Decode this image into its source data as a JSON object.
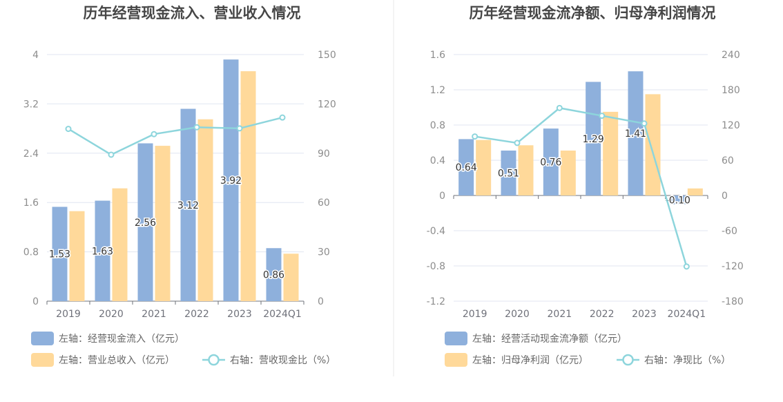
{
  "chart_data": [
    {
      "type": "bar",
      "title": "历年经营现金流入、营业收入情况",
      "categories": [
        "2019",
        "2020",
        "2021",
        "2022",
        "2023",
        "2024Q1"
      ],
      "y_left": {
        "ticks": [
          "0",
          "0.8",
          "1.6",
          "2.4",
          "3.2",
          "4"
        ],
        "ylim": [
          0,
          4
        ]
      },
      "y_right": {
        "ticks": [
          "0",
          "30",
          "60",
          "90",
          "120",
          "150"
        ],
        "ylim": [
          0,
          150
        ]
      },
      "series": [
        {
          "name": "左轴：经营现金流入（亿元）",
          "type": "bar",
          "axis": "left",
          "color": "#8eb0dc",
          "values": [
            1.53,
            1.63,
            2.56,
            3.12,
            3.92,
            0.86
          ],
          "labels": [
            "1.53",
            "1.63",
            "2.56",
            "3.12",
            "3.92",
            "0.86"
          ]
        },
        {
          "name": "左轴：营业总收入（亿元）",
          "type": "bar",
          "axis": "left",
          "color": "#ffd99a",
          "values": [
            1.46,
            1.83,
            2.52,
            2.95,
            3.73,
            0.77
          ]
        },
        {
          "name": "右轴：营收现金比（%）",
          "type": "line",
          "axis": "right",
          "color": "#8dd5dc",
          "values": [
            104.8,
            89.1,
            101.6,
            105.8,
            105.1,
            111.7
          ]
        }
      ],
      "grid": true,
      "legend": "bottom-left"
    },
    {
      "type": "bar",
      "title": "历年经营现金流净额、归母净利润情况",
      "categories": [
        "2019",
        "2020",
        "2021",
        "2022",
        "2023",
        "2024Q1"
      ],
      "y_left": {
        "ticks": [
          "-1.2",
          "-0.8",
          "-0.4",
          "0",
          "0.4",
          "0.8",
          "1.2",
          "1.6"
        ],
        "ylim": [
          -1.2,
          1.6
        ]
      },
      "y_right": {
        "ticks": [
          "-180",
          "-120",
          "-60",
          "0",
          "60",
          "120",
          "180",
          "240"
        ],
        "ylim": [
          -180,
          240
        ]
      },
      "series": [
        {
          "name": "左轴：经营活动现金流净额（亿元）",
          "type": "bar",
          "axis": "left",
          "color": "#8eb0dc",
          "values": [
            0.64,
            0.51,
            0.76,
            1.29,
            1.41,
            -0.1
          ],
          "labels": [
            "0.64",
            "0.51",
            "0.76",
            "1.29",
            "1.41",
            "-0.10"
          ]
        },
        {
          "name": "左轴：归母净利润（亿元）",
          "type": "bar",
          "axis": "left",
          "color": "#ffd99a",
          "values": [
            0.63,
            0.57,
            0.51,
            0.95,
            1.15,
            0.08
          ]
        },
        {
          "name": "右轴：净现比（%）",
          "type": "line",
          "axis": "right",
          "color": "#8dd5dc",
          "values": [
            100.5,
            89.5,
            149.0,
            135.8,
            122.6,
            -121.0
          ]
        }
      ],
      "grid": true,
      "legend": "bottom-left"
    }
  ]
}
